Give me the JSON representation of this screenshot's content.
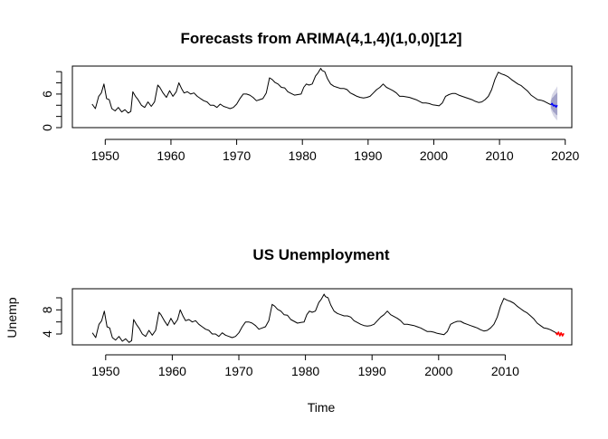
{
  "chart_data": [
    {
      "type": "line",
      "title": "Forecasts from ARIMA(4,1,4)(1,0,0)[12]",
      "xlabel": "",
      "ylabel": "",
      "xlim": [
        1945,
        2021
      ],
      "ylim": [
        0,
        11
      ],
      "xticks": [
        1950,
        1960,
        1970,
        1980,
        1990,
        2000,
        2010,
        2020
      ],
      "xtick_labels": [
        "1950",
        "1960",
        "1970",
        "1980",
        "1990",
        "2000",
        "2010",
        "2020"
      ],
      "yticks": [
        0,
        6
      ],
      "ytick_labels": [
        "0",
        "6"
      ],
      "yticks_minor": [
        2,
        4,
        8,
        10
      ],
      "grid": false,
      "legend": "none",
      "series": [
        {
          "role": "observed",
          "color": "#000000",
          "x": [
            1948.0,
            1948.5,
            1949.0,
            1949.4,
            1949.8,
            1950.2,
            1950.6,
            1951.0,
            1951.5,
            1952.0,
            1952.5,
            1953.0,
            1953.5,
            1953.9,
            1954.2,
            1954.6,
            1955.0,
            1955.5,
            1956.0,
            1956.5,
            1957.0,
            1957.5,
            1958.0,
            1958.3,
            1958.8,
            1959.3,
            1959.8,
            1960.3,
            1960.8,
            1961.2,
            1961.6,
            1962.0,
            1962.5,
            1963.0,
            1963.5,
            1964.0,
            1964.5,
            1965.0,
            1965.5,
            1966.0,
            1966.5,
            1967.0,
            1967.5,
            1968.0,
            1968.5,
            1969.0,
            1969.5,
            1970.0,
            1970.5,
            1971.0,
            1971.5,
            1972.0,
            1972.5,
            1973.0,
            1973.5,
            1974.0,
            1974.5,
            1975.0,
            1975.4,
            1975.8,
            1976.3,
            1976.8,
            1977.3,
            1977.8,
            1978.3,
            1978.8,
            1979.3,
            1979.8,
            1980.2,
            1980.6,
            1981.0,
            1981.5,
            1982.0,
            1982.4,
            1982.8,
            1983.0,
            1983.4,
            1983.8,
            1984.3,
            1984.8,
            1985.3,
            1985.8,
            1986.3,
            1986.8,
            1987.3,
            1987.8,
            1988.3,
            1988.8,
            1989.3,
            1989.8,
            1990.3,
            1990.8,
            1991.3,
            1991.8,
            1992.3,
            1992.8,
            1993.3,
            1993.8,
            1994.3,
            1994.8,
            1995.3,
            1995.8,
            1996.3,
            1996.8,
            1997.3,
            1997.8,
            1998.3,
            1998.8,
            1999.3,
            1999.8,
            2000.3,
            2000.8,
            2001.3,
            2001.8,
            2002.3,
            2002.8,
            2003.3,
            2003.8,
            2004.3,
            2004.8,
            2005.3,
            2005.8,
            2006.3,
            2006.8,
            2007.3,
            2007.8,
            2008.3,
            2008.8,
            2009.3,
            2009.8,
            2010.3,
            2010.8,
            2011.3,
            2011.8,
            2012.3,
            2012.8,
            2013.3,
            2013.8,
            2014.3,
            2014.8,
            2015.3,
            2015.8,
            2016.3,
            2016.8,
            2017.3,
            2017.8
          ],
          "y": [
            4.2,
            3.4,
            5.6,
            6.2,
            7.8,
            5.2,
            5.0,
            3.4,
            3.0,
            3.6,
            2.8,
            3.2,
            2.6,
            2.9,
            6.4,
            5.6,
            5.0,
            4.0,
            3.6,
            4.6,
            3.8,
            4.6,
            7.6,
            7.2,
            6.2,
            5.4,
            6.6,
            5.6,
            6.4,
            8.0,
            7.0,
            6.2,
            6.4,
            6.0,
            6.2,
            5.6,
            5.2,
            4.8,
            4.6,
            4.0,
            4.0,
            3.6,
            4.2,
            3.8,
            3.6,
            3.4,
            3.6,
            4.2,
            5.2,
            6.0,
            6.0,
            5.8,
            5.4,
            4.8,
            5.0,
            5.2,
            6.2,
            8.9,
            8.6,
            8.1,
            7.8,
            7.2,
            7.1,
            6.4,
            6.1,
            5.8,
            5.9,
            6.0,
            7.2,
            7.8,
            7.6,
            7.8,
            9.2,
            9.8,
            10.6,
            10.2,
            10.0,
            8.8,
            7.8,
            7.4,
            7.2,
            7.0,
            7.0,
            6.8,
            6.2,
            5.9,
            5.6,
            5.4,
            5.3,
            5.4,
            5.6,
            6.2,
            6.8,
            7.2,
            7.8,
            7.2,
            6.9,
            6.6,
            6.2,
            5.6,
            5.6,
            5.5,
            5.4,
            5.2,
            5.0,
            4.7,
            4.4,
            4.4,
            4.3,
            4.1,
            4.0,
            3.9,
            4.4,
            5.6,
            5.9,
            6.1,
            6.1,
            5.8,
            5.6,
            5.4,
            5.2,
            5.0,
            4.7,
            4.5,
            4.6,
            5.0,
            5.6,
            6.8,
            8.6,
            9.9,
            9.6,
            9.4,
            9.1,
            8.6,
            8.2,
            7.8,
            7.5,
            7.0,
            6.5,
            5.8,
            5.4,
            5.0,
            4.9,
            4.7,
            4.4,
            4.1
          ]
        },
        {
          "role": "forecast",
          "color": "#0000ff",
          "x": [
            2017.8,
            2018.0,
            2018.2,
            2018.4,
            2018.6,
            2018.8
          ],
          "y": [
            4.1,
            4.3,
            3.9,
            4.0,
            3.7,
            4.0
          ],
          "lower80": [
            3.5,
            3.2,
            2.8,
            2.6,
            2.3,
            2.2
          ],
          "upper80": [
            4.7,
            5.3,
            5.5,
            5.8,
            6.0,
            6.3
          ],
          "lower95": [
            3.2,
            2.6,
            2.1,
            1.8,
            1.5,
            1.3
          ],
          "upper95": [
            5.0,
            5.9,
            6.3,
            6.7,
            7.0,
            7.4
          ],
          "band_color_80": "#a3a3c8",
          "band_color_95": "#d6d6e6"
        }
      ]
    },
    {
      "type": "line",
      "title": "US Unemployment",
      "xlabel": "Time",
      "ylabel": "Unemp",
      "xlim": [
        1945,
        2020
      ],
      "ylim": [
        2.2,
        11.5
      ],
      "xticks": [
        1950,
        1960,
        1970,
        1980,
        1990,
        2000,
        2010
      ],
      "xtick_labels": [
        "1950",
        "1960",
        "1970",
        "1980",
        "1990",
        "2000",
        "2010"
      ],
      "yticks": [
        4,
        8
      ],
      "ytick_labels": [
        "4",
        "8"
      ],
      "yticks_minor": [
        6,
        10
      ],
      "grid": false,
      "legend": "none",
      "series": [
        {
          "role": "observed",
          "color": "#000000",
          "same_as_first_panel_observed": true
        },
        {
          "role": "forecast",
          "color": "#ff0000",
          "x": [
            2017.6,
            2017.8,
            2018.0,
            2018.2,
            2018.4,
            2018.6,
            2018.8
          ],
          "y": [
            4.2,
            3.9,
            4.3,
            3.7,
            4.2,
            3.7,
            4.1
          ]
        }
      ]
    }
  ]
}
